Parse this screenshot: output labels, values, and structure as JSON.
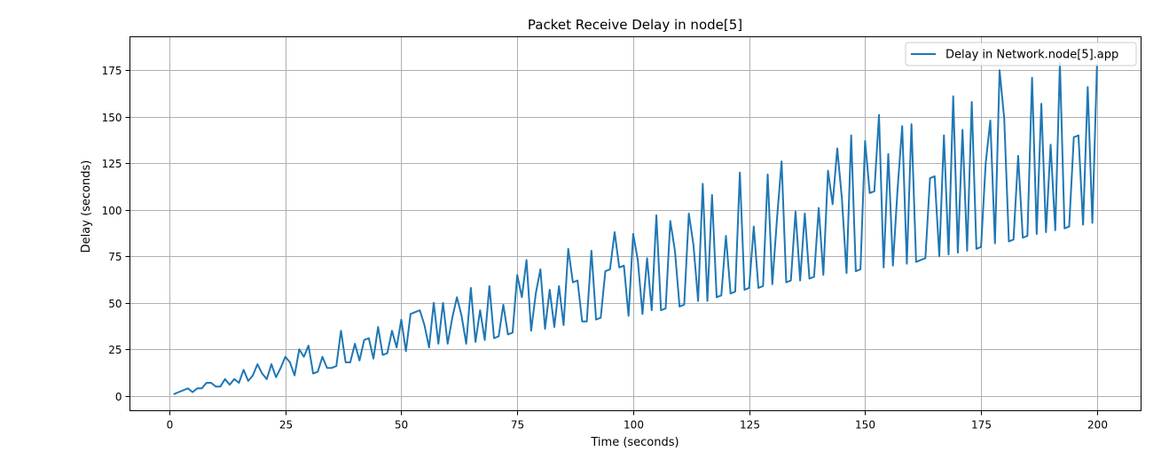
{
  "chart_data": {
    "type": "line",
    "title": "Packet Receive Delay in node[5]",
    "xlabel": "Time (seconds)",
    "ylabel": "Delay (seconds)",
    "xlim": [
      -8.5,
      209.5
    ],
    "ylim": [
      -8,
      193
    ],
    "xticks": [
      0,
      25,
      50,
      75,
      100,
      125,
      150,
      175,
      200
    ],
    "yticks": [
      0,
      25,
      50,
      75,
      100,
      125,
      150,
      175
    ],
    "grid": true,
    "legend": "top-right",
    "series": [
      {
        "name": "Delay in Network.node[5].app",
        "color": "#1f77b4",
        "x": [
          1.1,
          2.0,
          3.0,
          4.0,
          5.0,
          6.0,
          7.0,
          8.0,
          9.0,
          10.0,
          11.0,
          12.0,
          13.0,
          14.0,
          15.0,
          16.0,
          17.0,
          18.0,
          19.0,
          20.0,
          21.0,
          22.0,
          23.0,
          24.0,
          25.0,
          26.0,
          27.0,
          28.0,
          29.0,
          30.0,
          31.0,
          32.0,
          33.0,
          34.0,
          35.0,
          36.0,
          37.0,
          38.0,
          39.0,
          40.0,
          41.0,
          42.0,
          43.0,
          44.0,
          45.0,
          46.0,
          47.0,
          48.0,
          49.0,
          50.0,
          51.0,
          52.0,
          53.0,
          54.0,
          55.0,
          56.0,
          57.0,
          58.0,
          59.0,
          60.0,
          61.0,
          62.0,
          63.0,
          64.0,
          65.0,
          66.0,
          67.0,
          68.0,
          69.0,
          70.0,
          71.0,
          72.0,
          73.0,
          74.0,
          75.0,
          76.0,
          77.0,
          78.0,
          79.0,
          80.0,
          81.0,
          82.0,
          83.0,
          84.0,
          85.0,
          86.0,
          87.0,
          88.0,
          89.0,
          90.0,
          91.0,
          92.0,
          93.0,
          94.0,
          95.0,
          96.0,
          97.0,
          98.0,
          99.0,
          100.0,
          101.0,
          102.0,
          103.0,
          104.0,
          105.0,
          106.0,
          107.0,
          108.0,
          109.0,
          110.0,
          111.0,
          112.0,
          113.0,
          114.0,
          115.0,
          116.0,
          117.0,
          118.0,
          119.0,
          120.0,
          121.0,
          122.0,
          123.0,
          124.0,
          125.0,
          126.0,
          127.0,
          128.0,
          129.0,
          130.0,
          131.0,
          132.0,
          133.0,
          134.0,
          135.0,
          136.0,
          137.0,
          138.0,
          139.0,
          140.0,
          141.0,
          142.0,
          143.0,
          144.0,
          145.0,
          146.0,
          147.0,
          148.0,
          149.0,
          150.0,
          151.0,
          152.0,
          153.0,
          154.0,
          155.0,
          156.0,
          157.0,
          158.0,
          159.0,
          160.0,
          161.0,
          162.0,
          163.0,
          164.0,
          165.0,
          166.0,
          167.0,
          168.0,
          169.0,
          170.0,
          171.0,
          172.0,
          173.0,
          174.0,
          175.0,
          176.0,
          177.0,
          178.0,
          179.0,
          180.0,
          181.0,
          182.0,
          183.0,
          184.0,
          185.0,
          186.0,
          187.0,
          188.0,
          189.0,
          190.0,
          191.0,
          192.0,
          193.0,
          194.0,
          195.0,
          196.0,
          197.0,
          198.0,
          199.0,
          200.0
        ],
        "y": [
          1,
          2,
          3,
          4,
          2,
          4,
          4,
          7,
          7,
          5,
          5,
          9,
          6,
          9,
          7,
          14,
          8,
          11,
          17,
          12,
          9,
          17,
          10,
          15,
          21,
          18,
          11,
          25,
          21,
          27,
          12,
          13,
          21,
          15,
          15,
          16,
          35,
          18,
          18,
          28,
          19,
          30,
          31,
          20,
          37,
          22,
          23,
          35,
          26,
          41,
          24,
          44,
          45,
          46,
          38,
          26,
          50,
          28,
          50,
          28,
          42,
          53,
          43,
          28,
          58,
          29,
          46,
          30,
          59,
          31,
          32,
          49,
          33,
          34,
          65,
          53,
          73,
          35,
          55,
          68,
          36,
          57,
          37,
          59,
          38,
          79,
          61,
          62,
          40,
          40,
          78,
          41,
          42,
          67,
          68,
          88,
          69,
          70,
          43,
          87,
          73,
          44,
          74,
          46,
          97,
          46,
          47,
          94,
          78,
          48,
          49,
          98,
          81,
          51,
          114,
          51,
          108,
          53,
          54,
          86,
          55,
          56,
          120,
          57,
          58,
          91,
          58,
          59,
          119,
          60,
          95,
          126,
          61,
          62,
          99,
          62,
          98,
          63,
          64,
          101,
          65,
          121,
          103,
          133,
          106,
          66,
          140,
          67,
          68,
          137,
          109,
          110,
          151,
          69,
          130,
          70,
          111,
          145,
          71,
          146,
          72,
          73,
          74,
          117,
          118,
          75,
          140,
          76,
          161,
          77,
          143,
          78,
          158,
          79,
          80,
          125,
          148,
          82,
          175,
          149,
          83,
          84,
          129,
          85,
          86,
          171,
          87,
          157,
          88,
          135,
          89,
          179,
          90,
          91,
          139,
          140,
          92,
          166,
          93,
          178
        ]
      }
    ]
  }
}
